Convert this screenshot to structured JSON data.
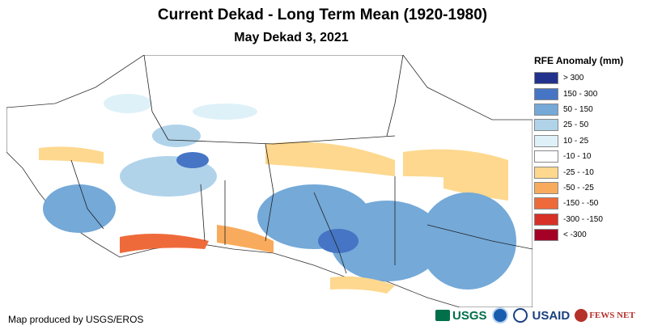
{
  "header": {
    "title": "Current Dekad - Long Term Mean (1920-1980)",
    "subtitle": "May Dekad 3, 2021"
  },
  "legend": {
    "title": "RFE Anomaly (mm)",
    "items": [
      {
        "label": "> 300",
        "color": "#21318c"
      },
      {
        "label": "150 - 300",
        "color": "#4575c4"
      },
      {
        "label": "50 - 150",
        "color": "#74a9d8"
      },
      {
        "label": "25 - 50",
        "color": "#b0d3ea"
      },
      {
        "label": "10 - 25",
        "color": "#dff1f8"
      },
      {
        "label": "-10 - 10",
        "color": "#ffffff"
      },
      {
        "label": "-25 - -10",
        "color": "#fdd88e"
      },
      {
        "label": "-50 - -25",
        "color": "#f8ab5c"
      },
      {
        "label": "-150 - -50",
        "color": "#ef6a3a"
      },
      {
        "label": "-300 - -150",
        "color": "#d73027"
      },
      {
        "label": "< -300",
        "color": "#a50026"
      }
    ]
  },
  "credit": "Map produced by USGS/EROS",
  "logos": {
    "usgs": "USGS",
    "usaid": "USAID",
    "fews": "FEWS NET"
  }
}
